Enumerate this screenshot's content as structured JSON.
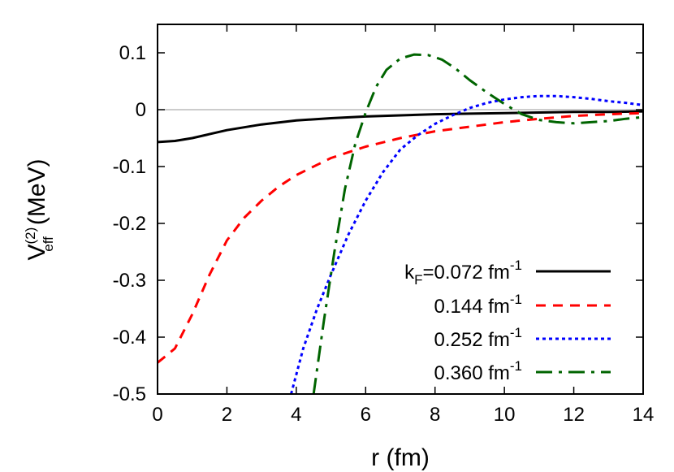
{
  "chart_data": {
    "type": "line",
    "xlabel": "r (fm)",
    "ylabel": {
      "base": "V",
      "superscript": "(2)",
      "subscript": "eff",
      "unit": "(MeV)"
    },
    "xlim": [
      0,
      14
    ],
    "ylim": [
      -0.5,
      0.15
    ],
    "x_ticks": [
      "0",
      "2",
      "4",
      "6",
      "8",
      "10",
      "12",
      "14"
    ],
    "y_ticks": [
      "0.1",
      "0",
      "-0.1",
      "-0.2",
      "-0.3",
      "-0.4",
      "-0.5"
    ],
    "zero_line": true,
    "legend_position": "bottom-right",
    "legend": [
      {
        "text_main": "k",
        "text_sub": "F",
        "text_rest": "=0.072 fm",
        "text_sup": "-1"
      },
      {
        "text_main": "0.144 fm",
        "text_sub": "",
        "text_rest": "",
        "text_sup": "-1"
      },
      {
        "text_main": "0.252 fm",
        "text_sub": "",
        "text_rest": "",
        "text_sup": "-1"
      },
      {
        "text_main": "0.360 fm",
        "text_sub": "",
        "text_rest": "",
        "text_sup": "-1"
      }
    ],
    "series": [
      {
        "name": "kF=0.072 fm-1",
        "color": "#000000",
        "style": "solid",
        "x": [
          0,
          0.5,
          1,
          1.5,
          2,
          3,
          4,
          5,
          6,
          7,
          8,
          9,
          10,
          11,
          12,
          13,
          14
        ],
        "y": [
          -0.057,
          -0.055,
          -0.05,
          -0.043,
          -0.036,
          -0.026,
          -0.019,
          -0.015,
          -0.012,
          -0.01,
          -0.008,
          -0.007,
          -0.006,
          -0.005,
          -0.004,
          -0.004,
          -0.003
        ]
      },
      {
        "name": "0.144 fm-1",
        "color": "#ff0000",
        "style": "dashed",
        "x": [
          0,
          0.5,
          1,
          1.5,
          2,
          2.5,
          3,
          3.5,
          4,
          5,
          6,
          7,
          8,
          9,
          10,
          11,
          12,
          13,
          14
        ],
        "y": [
          -0.445,
          -0.42,
          -0.36,
          -0.29,
          -0.23,
          -0.19,
          -0.16,
          -0.135,
          -0.115,
          -0.085,
          -0.065,
          -0.05,
          -0.038,
          -0.03,
          -0.022,
          -0.016,
          -0.011,
          -0.008,
          -0.006
        ]
      },
      {
        "name": "0.252 fm-1",
        "color": "#0000ff",
        "style": "dotted",
        "x": [
          3.85,
          4.2,
          4.6,
          5,
          5.5,
          6,
          6.5,
          7,
          7.5,
          8,
          8.5,
          9,
          9.5,
          10,
          10.5,
          11,
          11.5,
          12,
          12.5,
          13,
          13.5,
          14
        ],
        "y": [
          -0.5,
          -0.42,
          -0.35,
          -0.29,
          -0.22,
          -0.16,
          -0.11,
          -0.07,
          -0.045,
          -0.025,
          -0.01,
          0.003,
          0.012,
          0.018,
          0.022,
          0.024,
          0.024,
          0.022,
          0.019,
          0.015,
          0.012,
          0.008
        ]
      },
      {
        "name": "0.360 fm-1",
        "color": "#006400",
        "style": "dashdot",
        "x": [
          4.5,
          4.8,
          5.1,
          5.4,
          5.7,
          6,
          6.3,
          6.6,
          7,
          7.4,
          7.8,
          8.2,
          8.6,
          9,
          9.5,
          10,
          10.5,
          11,
          11.5,
          12,
          12.5,
          13,
          13.5,
          14
        ],
        "y": [
          -0.5,
          -0.37,
          -0.25,
          -0.14,
          -0.06,
          -0.005,
          0.04,
          0.07,
          0.09,
          0.097,
          0.096,
          0.088,
          0.072,
          0.052,
          0.03,
          0.01,
          -0.008,
          -0.018,
          -0.022,
          -0.024,
          -0.022,
          -0.02,
          -0.016,
          -0.013
        ]
      }
    ]
  }
}
